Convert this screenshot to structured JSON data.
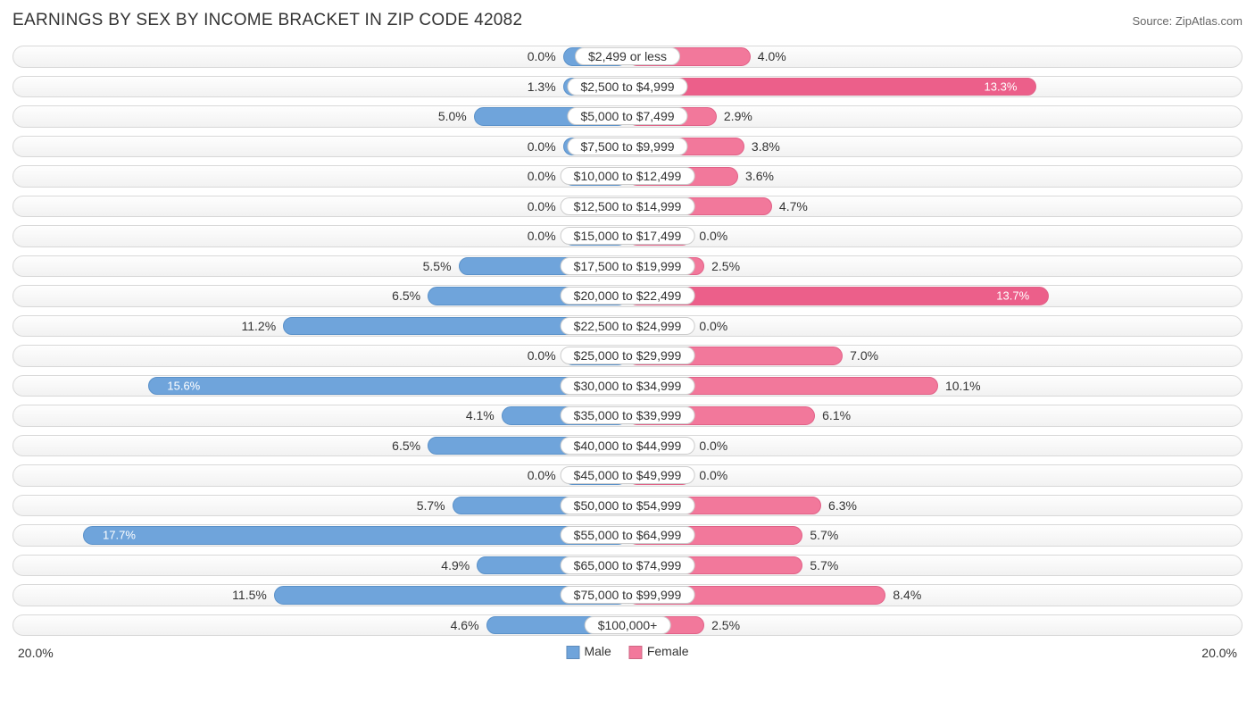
{
  "title": "EARNINGS BY SEX BY INCOME BRACKET IN ZIP CODE 42082",
  "source": "Source: ZipAtlas.com",
  "axis_max": 20.0,
  "axis_left_label": "20.0%",
  "axis_right_label": "20.0%",
  "colors": {
    "male": "#6fa4db",
    "male_border": "#5a91c9",
    "female": "#f2789b",
    "female_border": "#e06187",
    "female_accent": "#ec5f8a",
    "row_border": "#d8d8d8",
    "text": "#333333",
    "background": "#ffffff"
  },
  "legend": {
    "male": "Male",
    "female": "Female"
  },
  "min_bar_pct": 2.1,
  "rows": [
    {
      "label": "$2,499 or less",
      "male": 0.0,
      "female": 4.0,
      "female_accent": false
    },
    {
      "label": "$2,500 to $4,999",
      "male": 1.3,
      "female": 13.3,
      "female_accent": true
    },
    {
      "label": "$5,000 to $7,499",
      "male": 5.0,
      "female": 2.9,
      "female_accent": false
    },
    {
      "label": "$7,500 to $9,999",
      "male": 0.0,
      "female": 3.8,
      "female_accent": false
    },
    {
      "label": "$10,000 to $12,499",
      "male": 0.0,
      "female": 3.6,
      "female_accent": false
    },
    {
      "label": "$12,500 to $14,999",
      "male": 0.0,
      "female": 4.7,
      "female_accent": false
    },
    {
      "label": "$15,000 to $17,499",
      "male": 0.0,
      "female": 0.0,
      "female_accent": false
    },
    {
      "label": "$17,500 to $19,999",
      "male": 5.5,
      "female": 2.5,
      "female_accent": false
    },
    {
      "label": "$20,000 to $22,499",
      "male": 6.5,
      "female": 13.7,
      "female_accent": true
    },
    {
      "label": "$22,500 to $24,999",
      "male": 11.2,
      "female": 0.0,
      "female_accent": false
    },
    {
      "label": "$25,000 to $29,999",
      "male": 0.0,
      "female": 7.0,
      "female_accent": false
    },
    {
      "label": "$30,000 to $34,999",
      "male": 15.6,
      "female": 10.1,
      "female_accent": false
    },
    {
      "label": "$35,000 to $39,999",
      "male": 4.1,
      "female": 6.1,
      "female_accent": false
    },
    {
      "label": "$40,000 to $44,999",
      "male": 6.5,
      "female": 0.0,
      "female_accent": false
    },
    {
      "label": "$45,000 to $49,999",
      "male": 0.0,
      "female": 0.0,
      "female_accent": false
    },
    {
      "label": "$50,000 to $54,999",
      "male": 5.7,
      "female": 6.3,
      "female_accent": false
    },
    {
      "label": "$55,000 to $64,999",
      "male": 17.7,
      "female": 5.7,
      "female_accent": false
    },
    {
      "label": "$65,000 to $74,999",
      "male": 4.9,
      "female": 5.7,
      "female_accent": false
    },
    {
      "label": "$75,000 to $99,999",
      "male": 11.5,
      "female": 8.4,
      "female_accent": false
    },
    {
      "label": "$100,000+",
      "male": 4.6,
      "female": 2.5,
      "female_accent": false
    }
  ]
}
